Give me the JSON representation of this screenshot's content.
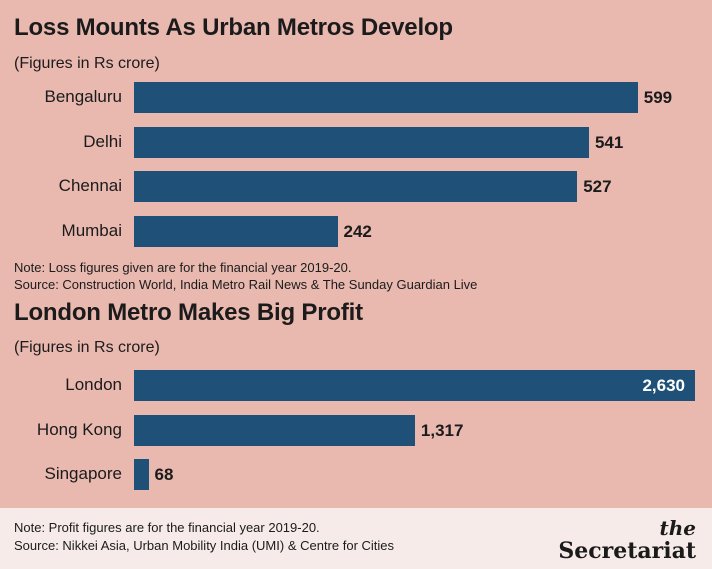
{
  "chart_data": [
    {
      "type": "bar",
      "orientation": "horizontal",
      "title": "Loss Mounts As Urban Metros Develop",
      "subtitle": "(Figures in Rs crore)",
      "categories": [
        "Bengaluru",
        "Delhi",
        "Chennai",
        "Mumbai"
      ],
      "values": [
        599,
        541,
        527,
        242
      ],
      "value_labels": [
        "599",
        "541",
        "527",
        "242"
      ],
      "xlim": [
        0,
        610
      ],
      "note": "Note: Loss figures given are for the financial year 2019-20.",
      "source": "Source: Construction World, India Metro Rail News & The Sunday Guardian Live",
      "bar_color": "#1f5077"
    },
    {
      "type": "bar",
      "orientation": "horizontal",
      "title": "London Metro Makes Big Profit",
      "subtitle": "(Figures in Rs crore)",
      "categories": [
        "London",
        "Hong Kong",
        "Singapore"
      ],
      "values": [
        2630,
        1317,
        68
      ],
      "value_labels": [
        "2,630",
        "1,317",
        "68"
      ],
      "xlim": [
        0,
        2630
      ],
      "bar_color": "#1f5077"
    }
  ],
  "footer": {
    "note": "Note: Profit figures are for the financial year 2019-20.",
    "source": "Source: Nikkei Asia, Urban Mobility India (UMI) & Centre for Cities"
  },
  "logo": {
    "the": "the",
    "name": "Secretariat"
  },
  "colors": {
    "background": "#e9b9b0",
    "footer": "#f6ebe8",
    "bar": "#1f5077"
  }
}
